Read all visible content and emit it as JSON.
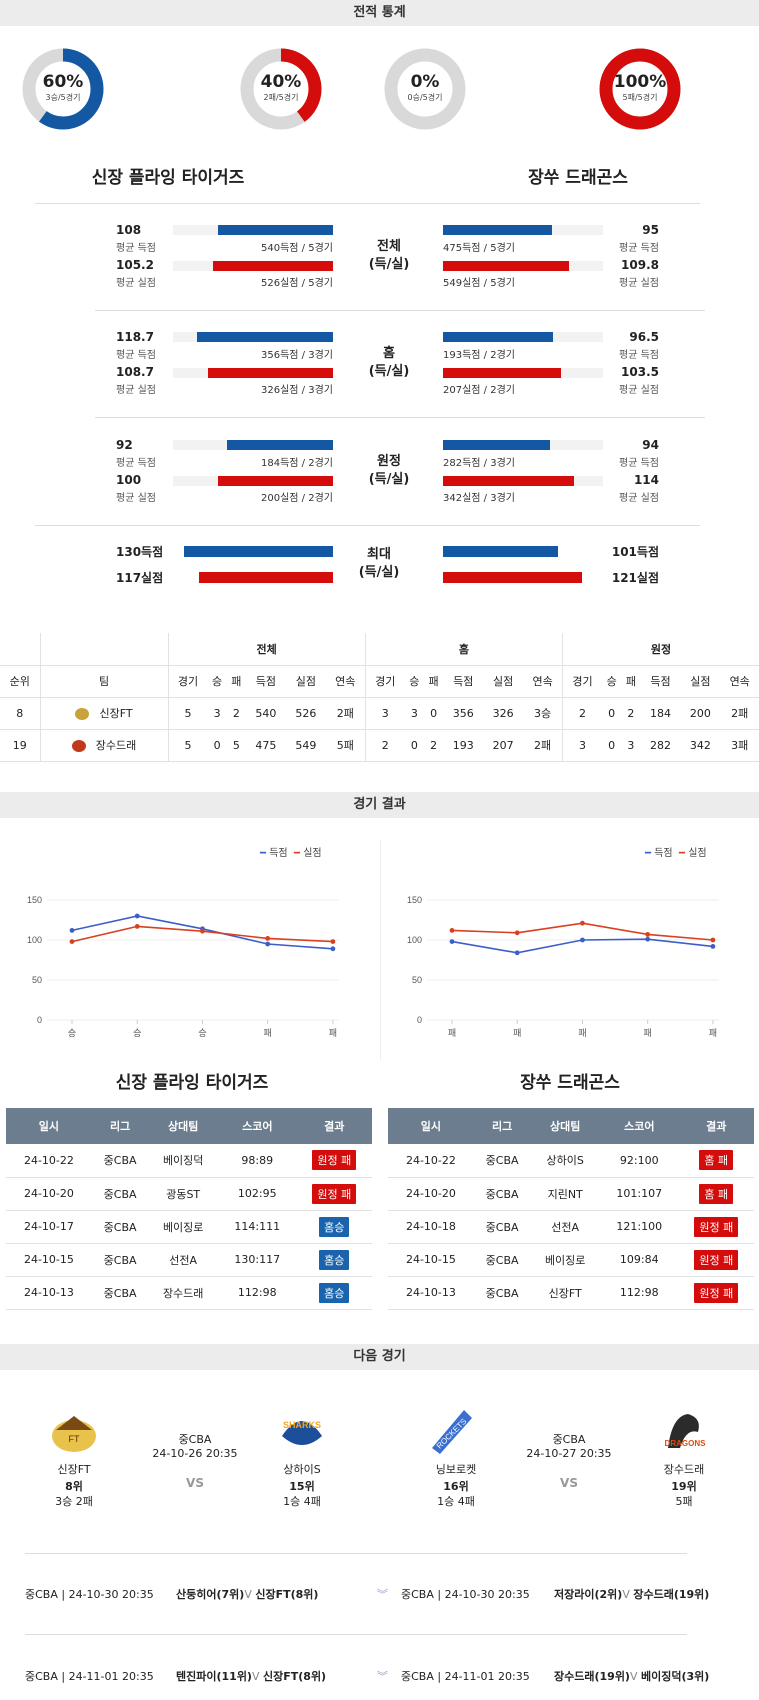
{
  "sections": {
    "stats": "전적 통계",
    "results": "경기 결과",
    "next": "다음 경기"
  },
  "donuts": [
    {
      "pct": "60%",
      "sub": "3승/5경기",
      "fraction": 0.6,
      "color": "#1458a3"
    },
    {
      "pct": "40%",
      "sub": "2패/5경기",
      "fraction": 0.4,
      "color": "#d40c0c"
    },
    {
      "pct": "0%",
      "sub": "0승/5경기",
      "fraction": 0.0,
      "color": "#1458a3"
    },
    {
      "pct": "100%",
      "sub": "5패/5경기",
      "fraction": 1.0,
      "color": "#d40c0c"
    }
  ],
  "teams": {
    "home": "신장 플라잉 타이거즈",
    "away": "장쑤 드래곤스"
  },
  "compare": [
    {
      "mid1": "전체",
      "mid2": "(득/실)",
      "lt": {
        "num": "108",
        "lab": "평균 득점",
        "bar": "540득점 / 5경기",
        "frac": 0.72
      },
      "lb": {
        "num": "105.2",
        "lab": "평균 실점",
        "bar": "526실점 / 5경기",
        "frac": 0.75
      },
      "rt": {
        "num": "95",
        "lab": "평균 득점",
        "bar": "475득점 / 5경기",
        "frac": 0.68
      },
      "rb": {
        "num": "109.8",
        "lab": "평균 실점",
        "bar": "549실점 / 5경기",
        "frac": 0.79
      }
    },
    {
      "mid1": "홈",
      "mid2": "(득/실)",
      "lt": {
        "num": "118.7",
        "lab": "평균 득점",
        "bar": "356득점 / 3경기",
        "frac": 0.85
      },
      "lb": {
        "num": "108.7",
        "lab": "평균 실점",
        "bar": "326실점 / 3경기",
        "frac": 0.78
      },
      "rt": {
        "num": "96.5",
        "lab": "평균 득점",
        "bar": "193득점 / 2경기",
        "frac": 0.69
      },
      "rb": {
        "num": "103.5",
        "lab": "평균 실점",
        "bar": "207실점 / 2경기",
        "frac": 0.74
      }
    },
    {
      "mid1": "원정",
      "mid2": "(득/실)",
      "lt": {
        "num": "92",
        "lab": "평균 득점",
        "bar": "184득점 / 2경기",
        "frac": 0.66
      },
      "lb": {
        "num": "100",
        "lab": "평균 실점",
        "bar": "200실점 / 2경기",
        "frac": 0.72
      },
      "rt": {
        "num": "94",
        "lab": "평균 득점",
        "bar": "282득점 / 3경기",
        "frac": 0.67
      },
      "rb": {
        "num": "114",
        "lab": "평균 실점",
        "bar": "342실점 / 3경기",
        "frac": 0.82
      }
    }
  ],
  "max": {
    "mid1": "최대",
    "mid2": "(득/실)",
    "lt": "130득점",
    "lb": "117실점",
    "rt": "101득점",
    "rb": "121실점",
    "ltf": 0.93,
    "lbf": 0.84,
    "rtf": 0.72,
    "rbf": 0.87
  },
  "standings": {
    "groups": [
      "전체",
      "홈",
      "원정"
    ],
    "head": [
      "순위",
      "팀",
      "경기",
      "승",
      "패",
      "득점",
      "실점",
      "연속",
      "경기",
      "승",
      "패",
      "득점",
      "실점",
      "연속",
      "경기",
      "승",
      "패",
      "득점",
      "실점",
      "연속"
    ],
    "rows": [
      [
        "8",
        "신장FT",
        "5",
        "3",
        "2",
        "540",
        "526",
        "2패",
        "3",
        "3",
        "0",
        "356",
        "326",
        "3승",
        "2",
        "0",
        "2",
        "184",
        "200",
        "2패"
      ],
      [
        "19",
        "장수드래",
        "5",
        "0",
        "5",
        "475",
        "549",
        "5패",
        "2",
        "0",
        "2",
        "193",
        "207",
        "2패",
        "3",
        "0",
        "3",
        "282",
        "342",
        "3패"
      ]
    ]
  },
  "charts": {
    "legend_score": "득점",
    "legend_conceded": "실점",
    "yticks": [
      "150",
      "100",
      "50",
      "0"
    ],
    "left": {
      "x": [
        "승",
        "승",
        "승",
        "패",
        "패"
      ],
      "scored": [
        112,
        130,
        114,
        95,
        89
      ],
      "conceded": [
        98,
        117,
        111,
        102,
        98
      ]
    },
    "right": {
      "x": [
        "패",
        "패",
        "패",
        "패",
        "패"
      ],
      "scored": [
        98,
        84,
        100,
        101,
        92
      ],
      "conceded": [
        112,
        109,
        121,
        107,
        100
      ]
    },
    "ylim": [
      0,
      150
    ],
    "colors": {
      "scored": "#3b5fc9",
      "conceded": "#d9401f"
    }
  },
  "results_head": [
    "일시",
    "리그",
    "상대팀",
    "스코어",
    "결과"
  ],
  "left_results": [
    [
      "24-10-22",
      "중CBA",
      "베이징덕",
      "98:89",
      "원정 패",
      "loss"
    ],
    [
      "24-10-20",
      "중CBA",
      "광동ST",
      "102:95",
      "원정 패",
      "loss"
    ],
    [
      "24-10-17",
      "중CBA",
      "베이징로",
      "114:111",
      "홈승",
      "win"
    ],
    [
      "24-10-15",
      "중CBA",
      "선전A",
      "130:117",
      "홈승",
      "win"
    ],
    [
      "24-10-13",
      "중CBA",
      "장수드래",
      "112:98",
      "홈승",
      "win"
    ]
  ],
  "right_results": [
    [
      "24-10-22",
      "중CBA",
      "상하이S",
      "92:100",
      "홈 패",
      "loss"
    ],
    [
      "24-10-20",
      "중CBA",
      "지린NT",
      "101:107",
      "홈 패",
      "loss"
    ],
    [
      "24-10-18",
      "중CBA",
      "선전A",
      "121:100",
      "원정 패",
      "loss"
    ],
    [
      "24-10-15",
      "중CBA",
      "베이징로",
      "109:84",
      "원정 패",
      "loss"
    ],
    [
      "24-10-13",
      "중CBA",
      "신장FT",
      "112:98",
      "원정 패",
      "loss"
    ]
  ],
  "next": [
    {
      "league": "중CBA",
      "date": "24-10-26 20:35",
      "vs": "VS",
      "a": {
        "name": "신장FT",
        "rank": "8위",
        "rec": "3승 2패"
      },
      "b": {
        "name": "상하이S",
        "rank": "15위",
        "rec": "1승 4패"
      }
    },
    {
      "league": "중CBA",
      "date": "24-10-27 20:35",
      "vs": "VS",
      "a": {
        "name": "닝보로켓",
        "rank": "16위",
        "rec": "1승 4패"
      },
      "b": {
        "name": "장수드래",
        "rank": "19위",
        "rec": "5패"
      }
    }
  ],
  "upcoming": [
    {
      "l": "중CBA | 24-10-30 20:35",
      "a": "산둥히어(7위)",
      "v": "V",
      "b": "신장FT(8위)",
      "r": "중CBA | 24-10-30 20:35",
      "ra": "저장라이(2위)",
      "rv": "V",
      "rb": "장수드래(19위)"
    },
    {
      "l": "중CBA | 24-11-01 20:35",
      "a": "텐진파이(11위)",
      "v": "V",
      "b": "신장FT(8위)",
      "r": "중CBA | 24-11-01 20:35",
      "ra": "장수드래(19위)",
      "rv": "V",
      "rb": "베이징덕(3위)"
    }
  ]
}
